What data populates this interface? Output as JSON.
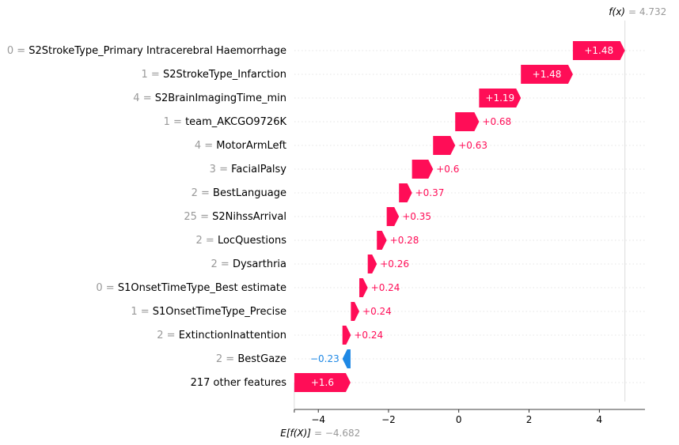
{
  "chart_data": {
    "type": "waterfall",
    "base_value": -4.682,
    "base_label_text": "E[f(X)]",
    "base_value_text": "= −4.682",
    "output_value": 4.732,
    "output_label_text": "f(x)",
    "output_value_text": "= 4.732",
    "xlim": [
      -4.68,
      5.3
    ],
    "x_ticks": [
      -4,
      -2,
      0,
      2,
      4
    ],
    "x_tick_labels": [
      "−4",
      "−2",
      "0",
      "2",
      "4"
    ],
    "positive_color": "#ff0d57",
    "negative_color": "#1e88e5",
    "features": [
      {
        "value": "0 =",
        "name": "S2StrokeType_Primary Intracerebral Haemorrhage",
        "shap": 1.48,
        "label": "+1.48"
      },
      {
        "value": "1 =",
        "name": "S2StrokeType_Infarction",
        "shap": 1.48,
        "label": "+1.48"
      },
      {
        "value": "4 =",
        "name": "S2BrainImagingTime_min",
        "shap": 1.19,
        "label": "+1.19"
      },
      {
        "value": "1 =",
        "name": "team_AKCGO9726K",
        "shap": 0.68,
        "label": "+0.68"
      },
      {
        "value": "4 =",
        "name": "MotorArmLeft",
        "shap": 0.63,
        "label": "+0.63"
      },
      {
        "value": "3 =",
        "name": "FacialPalsy",
        "shap": 0.6,
        "label": "+0.6"
      },
      {
        "value": "2 =",
        "name": "BestLanguage",
        "shap": 0.37,
        "label": "+0.37"
      },
      {
        "value": "25 =",
        "name": "S2NihssArrival",
        "shap": 0.35,
        "label": "+0.35"
      },
      {
        "value": "2 =",
        "name": "LocQuestions",
        "shap": 0.28,
        "label": "+0.28"
      },
      {
        "value": "2 =",
        "name": "Dysarthria",
        "shap": 0.26,
        "label": "+0.26"
      },
      {
        "value": "0 =",
        "name": "S1OnsetTimeType_Best estimate",
        "shap": 0.24,
        "label": "+0.24"
      },
      {
        "value": "1 =",
        "name": "S1OnsetTimeType_Precise",
        "shap": 0.24,
        "label": "+0.24"
      },
      {
        "value": "2 =",
        "name": "ExtinctionInattention",
        "shap": 0.24,
        "label": "+0.24"
      },
      {
        "value": "2 =",
        "name": "BestGaze",
        "shap": -0.23,
        "label": "−0.23"
      },
      {
        "value": "",
        "name": "217 other features",
        "shap": 1.6,
        "label": "+1.6"
      }
    ]
  }
}
